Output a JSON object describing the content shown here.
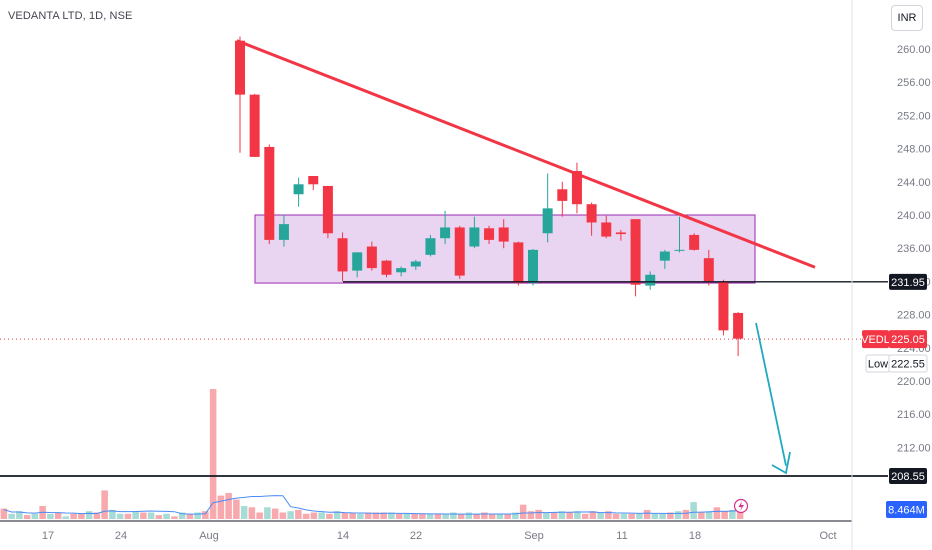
{
  "header": {
    "title": "VEDANTA LTD, 1D, NSE",
    "currency": "INR"
  },
  "colors": {
    "up": "#26a69a",
    "down": "#f23645",
    "trend": "#f23645",
    "box_fill": "#e9d4f2",
    "box_stroke": "#9c27b0",
    "arrow": "#22a9c2",
    "volume_ma": "#4c8cf5"
  },
  "price_labels": {
    "level_1": "231.95",
    "level_2": "208.55",
    "symbol": "VEDL",
    "last": "225.05",
    "low_label": "Low",
    "low": "222.55",
    "volume": "8.464M"
  },
  "chart_data": {
    "type": "candlestick",
    "y_ticks": [
      "260.00",
      "256.00",
      "252.00",
      "248.00",
      "244.00",
      "240.00",
      "236.00",
      "232.00",
      "228.00",
      "224.00",
      "220.00",
      "216.00",
      "212.00"
    ],
    "x_ticks": [
      "17",
      "24",
      "Aug",
      "14",
      "22",
      "Sep",
      "11",
      "18",
      "Oct"
    ],
    "ohlc": [
      {
        "o": 261.0,
        "h": 261.5,
        "l": 247.5,
        "c": 254.5
      },
      {
        "o": 254.5,
        "h": 254.6,
        "l": 247.0,
        "c": 247.0
      },
      {
        "o": 248.2,
        "h": 248.5,
        "l": 236.5,
        "c": 237.0
      },
      {
        "o": 237.0,
        "h": 240.0,
        "l": 236.2,
        "c": 238.9
      },
      {
        "o": 242.5,
        "h": 244.5,
        "l": 241.0,
        "c": 243.7
      },
      {
        "o": 244.7,
        "h": 244.7,
        "l": 243.0,
        "c": 243.7
      },
      {
        "o": 243.5,
        "h": 243.5,
        "l": 237.2,
        "c": 237.8
      },
      {
        "o": 237.2,
        "h": 237.9,
        "l": 232.0,
        "c": 233.2
      },
      {
        "o": 233.3,
        "h": 235.5,
        "l": 232.5,
        "c": 235.5
      },
      {
        "o": 236.2,
        "h": 236.8,
        "l": 233.3,
        "c": 233.6
      },
      {
        "o": 234.5,
        "h": 234.6,
        "l": 232.5,
        "c": 232.8
      },
      {
        "o": 233.1,
        "h": 233.8,
        "l": 232.6,
        "c": 233.6
      },
      {
        "o": 233.8,
        "h": 234.6,
        "l": 233.4,
        "c": 234.4
      },
      {
        "o": 235.2,
        "h": 237.6,
        "l": 235.0,
        "c": 237.2
      },
      {
        "o": 237.2,
        "h": 240.5,
        "l": 236.5,
        "c": 238.5
      },
      {
        "o": 238.5,
        "h": 238.7,
        "l": 232.3,
        "c": 232.7
      },
      {
        "o": 236.2,
        "h": 239.8,
        "l": 236.0,
        "c": 238.5
      },
      {
        "o": 238.4,
        "h": 238.7,
        "l": 236.5,
        "c": 237.0
      },
      {
        "o": 238.5,
        "h": 239.5,
        "l": 236.0,
        "c": 236.8
      },
      {
        "o": 236.7,
        "h": 236.8,
        "l": 231.5,
        "c": 231.8
      },
      {
        "o": 231.8,
        "h": 235.9,
        "l": 231.5,
        "c": 235.8
      },
      {
        "o": 237.8,
        "h": 245.0,
        "l": 236.7,
        "c": 240.8
      },
      {
        "o": 243.1,
        "h": 244.0,
        "l": 239.8,
        "c": 241.7
      },
      {
        "o": 245.3,
        "h": 246.3,
        "l": 240.2,
        "c": 241.3
      },
      {
        "o": 241.3,
        "h": 241.5,
        "l": 237.5,
        "c": 239.1
      },
      {
        "o": 239.1,
        "h": 239.9,
        "l": 237.2,
        "c": 237.4
      },
      {
        "o": 237.9,
        "h": 238.2,
        "l": 236.9,
        "c": 237.7
      },
      {
        "o": 239.5,
        "h": 239.5,
        "l": 230.2,
        "c": 231.6
      },
      {
        "o": 231.5,
        "h": 233.2,
        "l": 231.0,
        "c": 232.8
      },
      {
        "o": 234.5,
        "h": 235.8,
        "l": 233.5,
        "c": 235.6
      },
      {
        "o": 235.8,
        "h": 239.8,
        "l": 235.5,
        "c": 235.8
      },
      {
        "o": 237.6,
        "h": 237.8,
        "l": 235.7,
        "c": 235.8
      },
      {
        "o": 234.8,
        "h": 235.8,
        "l": 231.5,
        "c": 232.0
      },
      {
        "o": 232.0,
        "h": 232.2,
        "l": 225.5,
        "c": 226.1
      },
      {
        "o": 228.2,
        "h": 228.3,
        "l": 223.0,
        "c": 225.1
      }
    ],
    "volume_ratio": [
      0.08,
      0.04,
      0.06,
      0.03,
      0.04,
      0.1,
      0.04,
      0.05,
      0.02,
      0.04,
      0.04,
      0.06,
      0.05,
      0.22,
      0.07,
      0.04,
      0.04,
      0.06,
      0.05,
      0.05,
      0.03,
      0.04,
      0.02,
      0.05,
      0.04,
      0.05,
      0.06,
      1.0,
      0.18,
      0.2,
      0.15,
      0.1,
      0.09,
      0.05,
      0.09,
      0.08,
      0.05,
      0.06,
      0.07,
      0.04,
      0.05,
      0.05,
      0.04,
      0.06,
      0.05,
      0.05,
      0.04,
      0.05,
      0.05,
      0.05,
      0.05,
      0.04,
      0.04,
      0.04,
      0.04,
      0.04,
      0.04,
      0.04,
      0.05,
      0.04,
      0.05,
      0.04,
      0.05,
      0.04,
      0.04,
      0.04,
      0.05,
      0.11,
      0.06,
      0.07,
      0.05,
      0.05,
      0.06,
      0.05,
      0.06,
      0.04,
      0.06,
      0.05,
      0.06,
      0.04,
      0.04,
      0.04,
      0.04,
      0.07,
      0.04,
      0.04,
      0.05,
      0.06,
      0.07,
      0.13,
      0.05,
      0.06,
      0.09,
      0.06,
      0.07,
      0.08
    ],
    "volume_up": [
      false,
      true,
      true,
      false,
      true,
      false,
      true,
      false,
      true,
      false,
      false,
      true,
      false,
      false,
      true,
      true,
      false,
      true,
      false,
      true,
      false,
      true,
      false,
      true,
      false,
      true,
      false,
      false,
      false,
      false,
      false,
      true,
      false,
      false,
      true,
      false,
      false,
      true,
      false,
      false,
      false,
      true,
      false,
      true,
      false,
      false,
      true,
      false,
      false,
      false,
      true,
      false,
      true,
      false,
      false,
      true,
      false,
      true,
      true,
      false,
      true,
      false,
      false,
      false,
      true,
      false,
      true,
      false,
      false,
      false,
      true,
      false,
      true,
      false,
      true,
      false,
      false,
      true,
      false,
      false,
      true,
      false,
      true,
      false,
      true,
      true,
      false,
      true,
      false,
      true,
      false,
      true,
      false,
      false,
      true,
      false
    ]
  }
}
